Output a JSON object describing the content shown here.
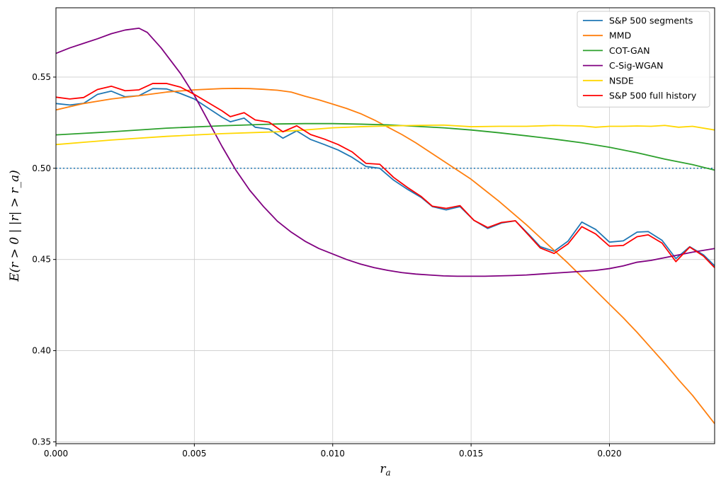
{
  "chart_data": {
    "type": "line",
    "xlabel": "r_a",
    "ylabel": "E(r > 0 | |r| > r_a)",
    "xlim": [
      0,
      0.0238
    ],
    "ylim": [
      0.349,
      0.588
    ],
    "xticks": [
      0,
      0.005,
      0.01,
      0.015,
      0.02
    ],
    "xtick_labels": [
      "0.000",
      "0.005",
      "0.010",
      "0.015",
      "0.020"
    ],
    "yticks": [
      0.35,
      0.4,
      0.45,
      0.5,
      0.55
    ],
    "ytick_labels": [
      "0.35",
      "0.40",
      "0.45",
      "0.50",
      "0.55"
    ],
    "grid": true,
    "legend_position": "top-right",
    "reference_line": {
      "y": 0.5,
      "style": "dotted",
      "color": "#1f77b4"
    },
    "series": [
      {
        "name": "S&P 500 segments",
        "color": "#1f77b4",
        "x": [
          0,
          0.0005,
          0.001,
          0.0015,
          0.002,
          0.0025,
          0.003,
          0.0035,
          0.004,
          0.0045,
          0.005,
          0.0055,
          0.006,
          0.0063,
          0.0068,
          0.0072,
          0.0077,
          0.0082,
          0.0087,
          0.0092,
          0.0097,
          0.0102,
          0.0107,
          0.0112,
          0.0117,
          0.0122,
          0.0127,
          0.0132,
          0.0136,
          0.0141,
          0.0146,
          0.0151,
          0.0156,
          0.0161,
          0.0166,
          0.0171,
          0.0175,
          0.018,
          0.0185,
          0.019,
          0.0195,
          0.02,
          0.0205,
          0.021,
          0.0214,
          0.0219,
          0.0224,
          0.0229,
          0.0234,
          0.0238
        ],
        "y": [
          0.5355,
          0.5347,
          0.5356,
          0.5405,
          0.5423,
          0.5392,
          0.5398,
          0.5437,
          0.5435,
          0.541,
          0.538,
          0.533,
          0.528,
          0.5255,
          0.5275,
          0.5225,
          0.5215,
          0.5165,
          0.5205,
          0.5158,
          0.513,
          0.51,
          0.506,
          0.501,
          0.5,
          0.4935,
          0.4885,
          0.484,
          0.479,
          0.4772,
          0.479,
          0.4715,
          0.467,
          0.47,
          0.4712,
          0.4635,
          0.457,
          0.4545,
          0.46,
          0.4705,
          0.4665,
          0.4595,
          0.4602,
          0.465,
          0.4653,
          0.4605,
          0.4505,
          0.457,
          0.4525,
          0.4465
        ]
      },
      {
        "name": "MMD",
        "color": "#ff7f0e",
        "x": [
          0,
          0.001,
          0.002,
          0.003,
          0.004,
          0.005,
          0.006,
          0.0065,
          0.007,
          0.0075,
          0.008,
          0.0085,
          0.009,
          0.0095,
          0.01,
          0.0105,
          0.011,
          0.0115,
          0.012,
          0.0125,
          0.013,
          0.0135,
          0.014,
          0.0145,
          0.015,
          0.0155,
          0.016,
          0.0165,
          0.017,
          0.0175,
          0.018,
          0.0185,
          0.019,
          0.0195,
          0.02,
          0.0205,
          0.021,
          0.0215,
          0.022,
          0.0225,
          0.023,
          0.0238
        ],
        "y": [
          0.532,
          0.5355,
          0.538,
          0.5398,
          0.5418,
          0.543,
          0.5437,
          0.5438,
          0.5437,
          0.5433,
          0.5428,
          0.5418,
          0.5395,
          0.5375,
          0.5352,
          0.5328,
          0.53,
          0.5265,
          0.5225,
          0.5185,
          0.514,
          0.509,
          0.504,
          0.499,
          0.494,
          0.488,
          0.482,
          0.4755,
          0.469,
          0.462,
          0.455,
          0.448,
          0.4405,
          0.433,
          0.4255,
          0.418,
          0.41,
          0.4015,
          0.393,
          0.384,
          0.3755,
          0.36
        ]
      },
      {
        "name": "COT-GAN",
        "color": "#2ca02c",
        "x": [
          0,
          0.002,
          0.004,
          0.006,
          0.008,
          0.009,
          0.01,
          0.011,
          0.012,
          0.013,
          0.014,
          0.015,
          0.016,
          0.017,
          0.018,
          0.019,
          0.02,
          0.021,
          0.022,
          0.023,
          0.0238
        ],
        "y": [
          0.5183,
          0.52,
          0.522,
          0.5233,
          0.5243,
          0.5245,
          0.5245,
          0.5242,
          0.5238,
          0.523,
          0.5222,
          0.521,
          0.5195,
          0.5178,
          0.516,
          0.514,
          0.5115,
          0.5085,
          0.505,
          0.502,
          0.499
        ]
      },
      {
        "name": "C-Sig-WGAN",
        "color": "#800080",
        "x": [
          0,
          0.0005,
          0.001,
          0.0015,
          0.002,
          0.0025,
          0.003,
          0.0033,
          0.0038,
          0.0045,
          0.005,
          0.0055,
          0.006,
          0.0065,
          0.007,
          0.0075,
          0.008,
          0.0085,
          0.009,
          0.0095,
          0.01,
          0.0105,
          0.011,
          0.0115,
          0.012,
          0.0125,
          0.013,
          0.0135,
          0.014,
          0.0145,
          0.015,
          0.0155,
          0.016,
          0.0165,
          0.017,
          0.0175,
          0.018,
          0.0185,
          0.019,
          0.0195,
          0.02,
          0.0205,
          0.021,
          0.0215,
          0.022,
          0.0225,
          0.023,
          0.0238
        ],
        "y": [
          0.563,
          0.566,
          0.5685,
          0.571,
          0.5738,
          0.5758,
          0.5768,
          0.5745,
          0.566,
          0.552,
          0.54,
          0.526,
          0.512,
          0.499,
          0.488,
          0.479,
          0.471,
          0.465,
          0.46,
          0.456,
          0.453,
          0.45,
          0.4475,
          0.4455,
          0.444,
          0.4428,
          0.442,
          0.4415,
          0.441,
          0.4408,
          0.4408,
          0.4408,
          0.441,
          0.4412,
          0.4415,
          0.442,
          0.4425,
          0.443,
          0.4435,
          0.444,
          0.445,
          0.4465,
          0.4485,
          0.4495,
          0.451,
          0.4525,
          0.454,
          0.456
        ]
      },
      {
        "name": "NSDE",
        "color": "#ffd700",
        "x": [
          0,
          0.002,
          0.004,
          0.006,
          0.008,
          0.009,
          0.01,
          0.011,
          0.012,
          0.013,
          0.014,
          0.015,
          0.016,
          0.017,
          0.018,
          0.019,
          0.0195,
          0.02,
          0.0205,
          0.021,
          0.0215,
          0.022,
          0.0225,
          0.023,
          0.0238
        ],
        "y": [
          0.513,
          0.5155,
          0.5175,
          0.519,
          0.52,
          0.521,
          0.5222,
          0.5228,
          0.5232,
          0.5235,
          0.5237,
          0.5228,
          0.523,
          0.523,
          0.5235,
          0.5232,
          0.5225,
          0.523,
          0.523,
          0.5232,
          0.523,
          0.5235,
          0.5225,
          0.523,
          0.521
        ]
      },
      {
        "name": "S&P 500 full history",
        "color": "#ff0000",
        "x": [
          0,
          0.0005,
          0.001,
          0.0015,
          0.002,
          0.0025,
          0.003,
          0.0035,
          0.004,
          0.0045,
          0.005,
          0.0055,
          0.006,
          0.0063,
          0.0068,
          0.0072,
          0.0077,
          0.0082,
          0.0087,
          0.0092,
          0.0097,
          0.0102,
          0.0107,
          0.0112,
          0.0117,
          0.0122,
          0.0127,
          0.0132,
          0.0136,
          0.0141,
          0.0146,
          0.0151,
          0.0156,
          0.0161,
          0.0166,
          0.0171,
          0.0175,
          0.018,
          0.0185,
          0.019,
          0.0195,
          0.02,
          0.0205,
          0.021,
          0.0214,
          0.0219,
          0.0224,
          0.0229,
          0.0234,
          0.0238
        ],
        "y": [
          0.539,
          0.538,
          0.5388,
          0.5432,
          0.545,
          0.5425,
          0.543,
          0.5465,
          0.5465,
          0.5445,
          0.5405,
          0.536,
          0.5315,
          0.5283,
          0.5305,
          0.5265,
          0.5253,
          0.52,
          0.5233,
          0.5185,
          0.516,
          0.513,
          0.509,
          0.5027,
          0.5022,
          0.495,
          0.4895,
          0.4845,
          0.4792,
          0.478,
          0.4795,
          0.4715,
          0.4675,
          0.4703,
          0.4712,
          0.463,
          0.4563,
          0.4533,
          0.4585,
          0.468,
          0.464,
          0.4573,
          0.4577,
          0.4625,
          0.4635,
          0.459,
          0.4488,
          0.4568,
          0.4518,
          0.4455
        ]
      }
    ]
  }
}
